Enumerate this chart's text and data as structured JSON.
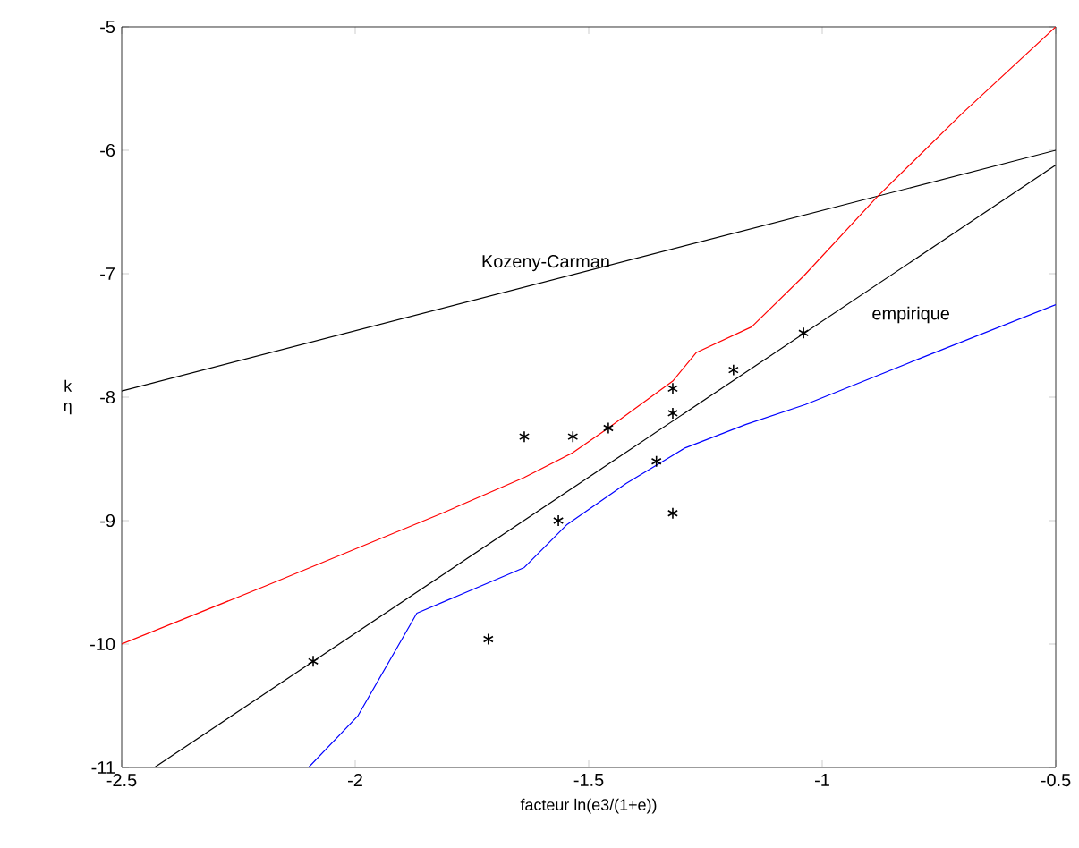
{
  "chart_data": {
    "type": "line",
    "xlabel": "facteur ln(e3/(1+e))",
    "ylabel": "k η",
    "xlim": [
      -2.5,
      -0.5
    ],
    "ylim": [
      -11,
      -5
    ],
    "xticks": [
      -2.5,
      -2,
      -1.5,
      -1,
      -0.5
    ],
    "yticks": [
      -11,
      -10,
      -9,
      -8,
      -7,
      -6,
      -5
    ],
    "grid": false,
    "series": [
      {
        "type": "scatter",
        "marker": "cross",
        "color": "#000000",
        "x": [
          -2.09,
          -1.715,
          -1.638,
          -1.534,
          -1.565,
          -1.458,
          -1.32,
          -1.32,
          -1.355,
          -1.32,
          -1.19,
          -1.04
        ],
        "values": [
          -10.14,
          -9.96,
          -8.32,
          -8.32,
          -9.0,
          -8.25,
          -7.93,
          -8.13,
          -8.52,
          -8.94,
          -7.78,
          -7.48
        ]
      },
      {
        "color": "#000000",
        "x": [
          -2.43,
          -0.5
        ],
        "values": [
          -11,
          -6.12
        ]
      },
      {
        "color": "#000000",
        "x": [
          -2.5,
          -0.5
        ],
        "values": [
          -7.95,
          -6.0
        ]
      },
      {
        "color": "#ff0000",
        "x": [
          -2.5,
          -2.186,
          -1.814,
          -1.638,
          -1.534,
          -1.458,
          -1.32,
          -1.27,
          -1.151,
          -1.04,
          -0.883,
          -0.7,
          -0.5
        ],
        "values": [
          -10.0,
          -9.52,
          -8.94,
          -8.65,
          -8.45,
          -8.25,
          -7.87,
          -7.64,
          -7.43,
          -7.02,
          -6.38,
          -5.7,
          -5.0
        ]
      },
      {
        "color": "#0000ff",
        "x": [
          -2.1,
          -1.994,
          -1.868,
          -1.638,
          -1.546,
          -1.42,
          -1.293,
          -1.163,
          -1.036,
          -0.8,
          -0.5
        ],
        "values": [
          -11.0,
          -10.58,
          -9.75,
          -9.38,
          -9.03,
          -8.7,
          -8.41,
          -8.22,
          -8.06,
          -7.7,
          -7.25
        ]
      }
    ],
    "annotations": [
      "Kozeny-Carman",
      "empirique"
    ]
  }
}
